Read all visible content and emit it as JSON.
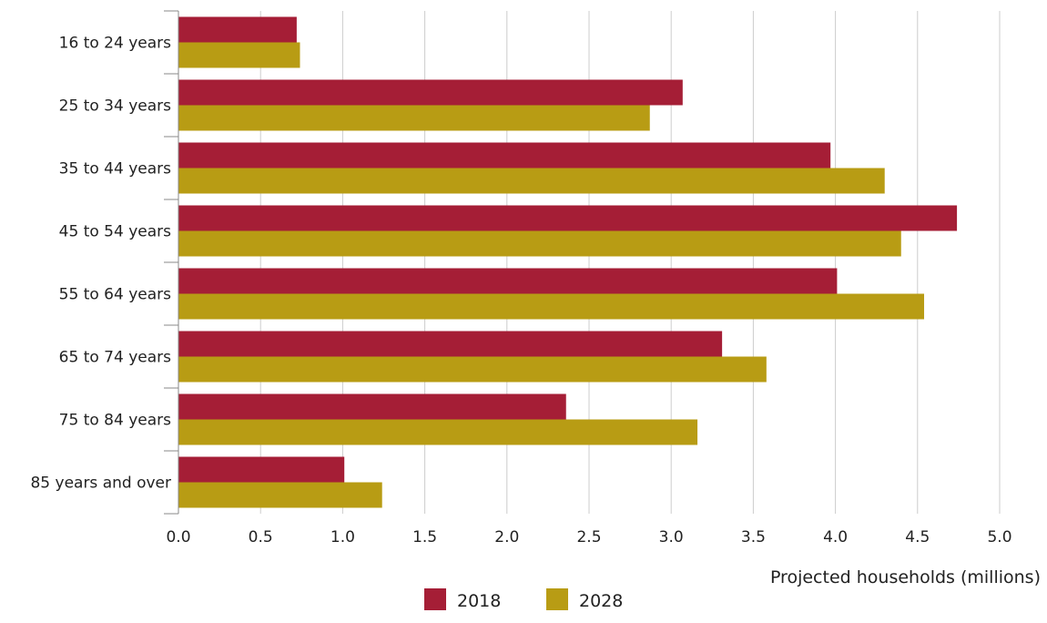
{
  "chart_data": {
    "type": "bar",
    "orientation": "horizontal",
    "categories": [
      "16 to 24 years",
      "25 to 34 years",
      "35 to 44 years",
      "45 to 54 years",
      "55 to 64 years",
      "65 to 74 years",
      "75 to 84 years",
      "85 years and over"
    ],
    "series": [
      {
        "name": "2018",
        "color": "#A51E36",
        "values": [
          0.72,
          3.07,
          3.97,
          4.74,
          4.01,
          3.31,
          2.36,
          1.01
        ]
      },
      {
        "name": "2028",
        "color": "#B89C14",
        "values": [
          0.74,
          2.87,
          4.3,
          4.4,
          4.54,
          3.58,
          3.16,
          1.24
        ]
      }
    ],
    "xlabel": "Projected households (millions)",
    "ylabel": "",
    "xlim": [
      0,
      5.0
    ],
    "xticks": [
      "0.0",
      "0.5",
      "1.0",
      "1.5",
      "2.0",
      "2.5",
      "3.0",
      "3.5",
      "4.0",
      "4.5",
      "5.0"
    ],
    "grid": "vertical",
    "legend_placement": "bottom-center"
  }
}
